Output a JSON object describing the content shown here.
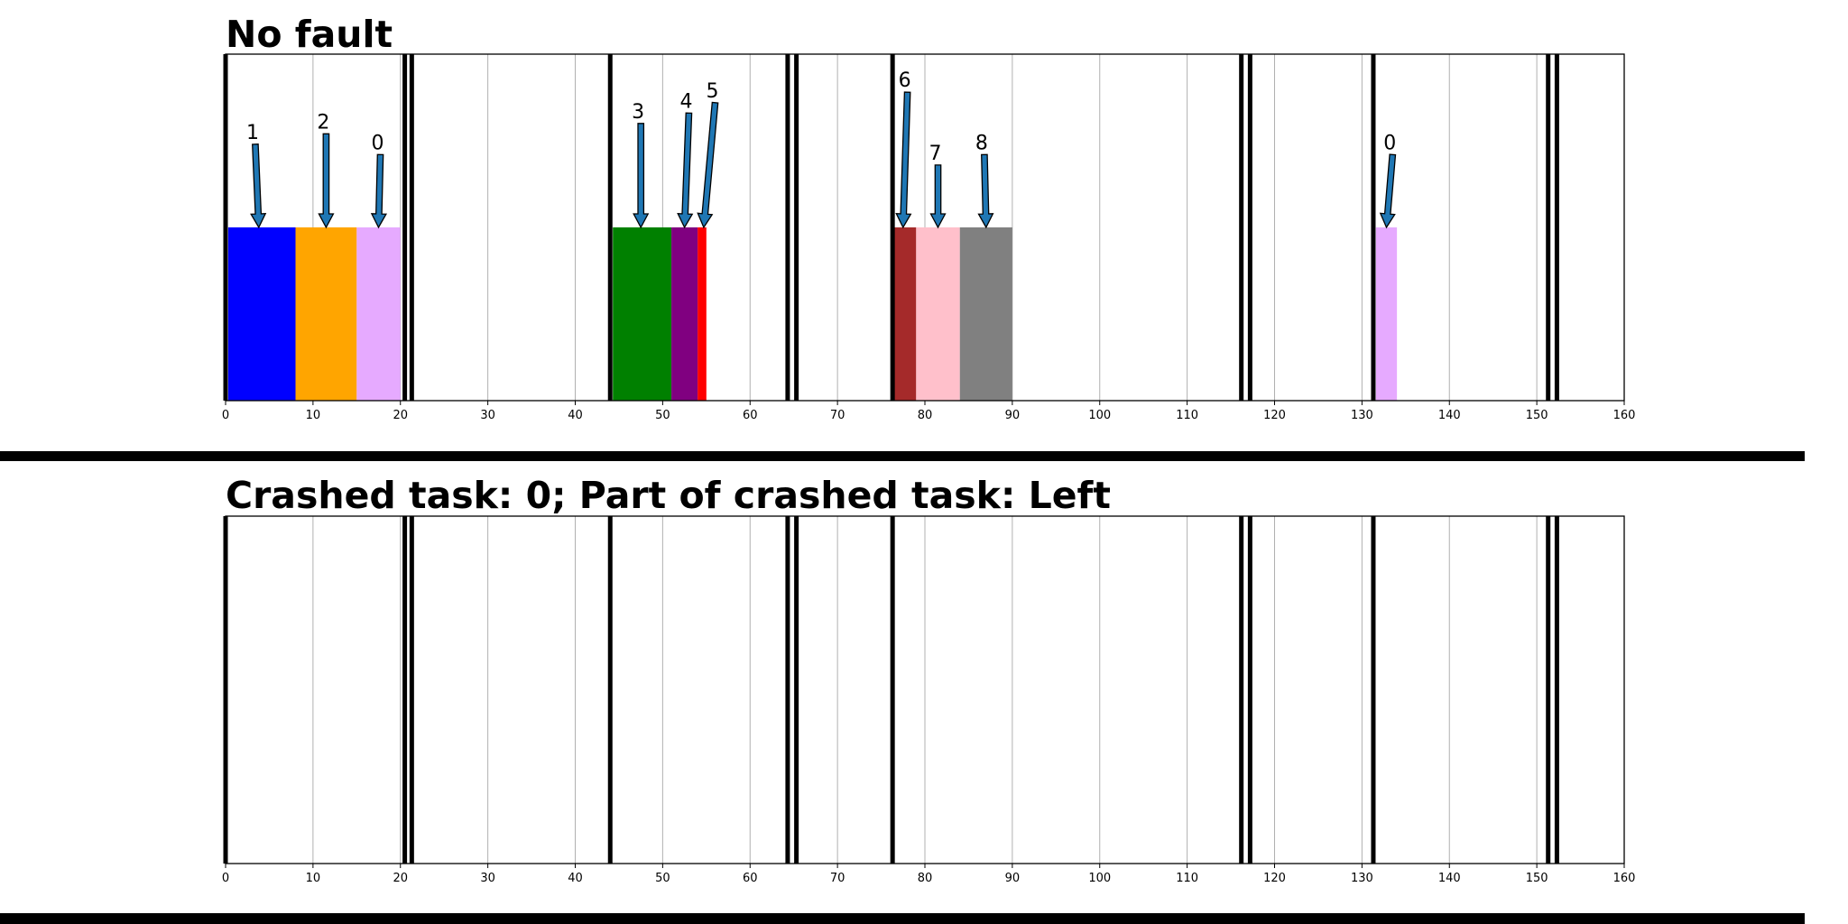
{
  "chart_data": [
    {
      "type": "bar",
      "title": "No fault",
      "xlim": [
        0,
        160
      ],
      "xticks": [
        0,
        10,
        20,
        30,
        40,
        50,
        60,
        70,
        80,
        90,
        100,
        110,
        120,
        130,
        140,
        150,
        160
      ],
      "grid": "vertical",
      "boundaries": [
        0,
        20.5,
        21.3,
        44,
        64.3,
        65.3,
        76.3,
        116.2,
        117.2,
        131.3,
        151.3,
        152.3
      ],
      "blocks": [
        {
          "start": 0.3,
          "end": 8,
          "color": "#0000ff"
        },
        {
          "start": 8,
          "end": 15,
          "color": "#ffa500"
        },
        {
          "start": 15,
          "end": 20,
          "color": "#e6aaff"
        },
        {
          "start": 44.3,
          "end": 51,
          "color": "#008000"
        },
        {
          "start": 51,
          "end": 54,
          "color": "#800080"
        },
        {
          "start": 54,
          "end": 55,
          "color": "#ff0000"
        },
        {
          "start": 76.5,
          "end": 79,
          "color": "#a52a2a"
        },
        {
          "start": 79,
          "end": 84,
          "color": "#ffc0cb"
        },
        {
          "start": 84,
          "end": 90,
          "color": "#808080"
        },
        {
          "start": 131.6,
          "end": 134,
          "color": "#e6aaff"
        }
      ],
      "annotations": [
        {
          "label": "1",
          "x": 3.8,
          "tail_x": 3.4,
          "tail_level": 0.74
        },
        {
          "label": "2",
          "x": 11.5,
          "tail_x": 11.5,
          "tail_level": 0.77
        },
        {
          "label": "0",
          "x": 17.5,
          "tail_x": 17.7,
          "tail_level": 0.71
        },
        {
          "label": "3",
          "x": 47.5,
          "tail_x": 47.5,
          "tail_level": 0.8
        },
        {
          "label": "4",
          "x": 52.5,
          "tail_x": 53,
          "tail_level": 0.83
        },
        {
          "label": "5",
          "x": 54.7,
          "tail_x": 56,
          "tail_level": 0.86
        },
        {
          "label": "6",
          "x": 77.5,
          "tail_x": 78,
          "tail_level": 0.89
        },
        {
          "label": "7",
          "x": 81.5,
          "tail_x": 81.5,
          "tail_level": 0.68
        },
        {
          "label": "8",
          "x": 87,
          "tail_x": 86.8,
          "tail_level": 0.71
        },
        {
          "label": "0",
          "x": 132.8,
          "tail_x": 133.5,
          "tail_level": 0.71
        }
      ],
      "block_level": 0.5,
      "arrow_color": "#1f77b4"
    },
    {
      "type": "bar",
      "title": "Crashed task: 0; Part of crashed task: Left",
      "xlim": [
        0,
        160
      ],
      "xticks": [
        0,
        10,
        20,
        30,
        40,
        50,
        60,
        70,
        80,
        90,
        100,
        110,
        120,
        130,
        140,
        150,
        160
      ],
      "grid": "vertical",
      "boundaries": [
        0,
        20.5,
        21.3,
        44,
        64.3,
        65.3,
        76.3,
        116.2,
        117.2,
        131.3,
        151.3,
        152.3
      ],
      "blocks": [],
      "annotations": []
    }
  ]
}
